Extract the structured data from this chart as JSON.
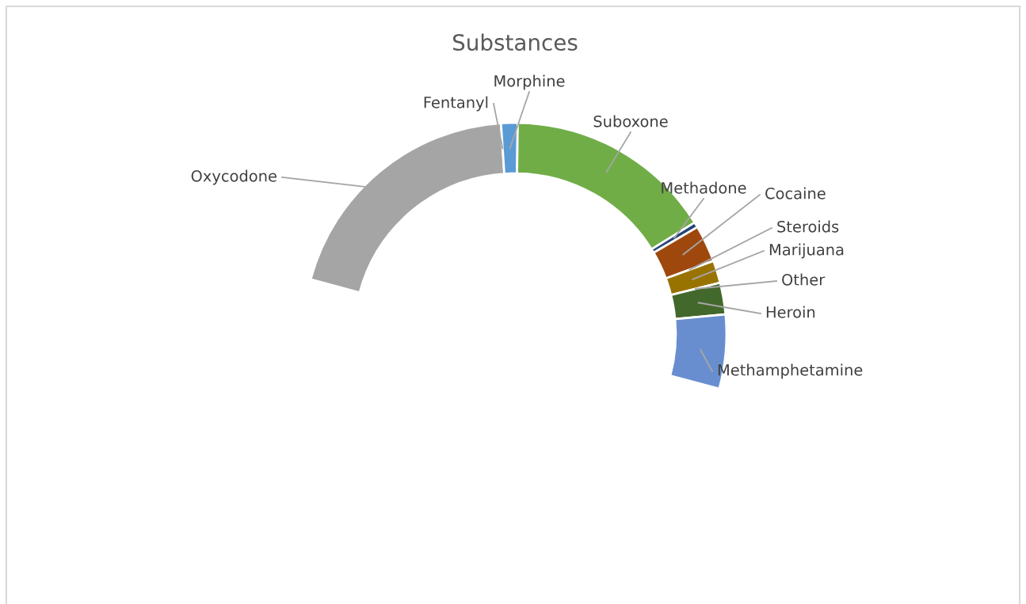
{
  "chart_data": {
    "type": "donut",
    "title": "Substances",
    "categories": [
      "Oxycodone",
      "Fentanyl",
      "Morphine",
      "Suboxone",
      "Methadone",
      "Cocaine",
      "Steroids",
      "Marijuana",
      "Other",
      "Heroin",
      "Methamphetamine"
    ],
    "values": [
      39.2,
      null,
      2.5,
      31.6,
      0.8,
      5.6,
      null,
      3.4,
      null,
      4.8,
      11.2
    ],
    "colors": [
      "#a5a5a5",
      "#ed7d31",
      "#5b9bd5",
      "#70ad47",
      "#264478",
      "#9e480e",
      "#636363",
      "#997300",
      "#255e91",
      "#43682b",
      "#698ed0"
    ]
  }
}
